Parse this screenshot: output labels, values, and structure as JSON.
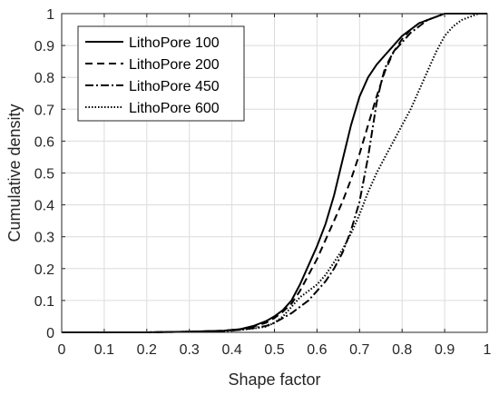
{
  "chart_data": {
    "type": "line",
    "title": "",
    "xlabel": "Shape factor",
    "ylabel": "Cumulative density",
    "xlim": [
      0,
      1
    ],
    "ylim": [
      0,
      1
    ],
    "x_ticks": [
      "0",
      "0.1",
      "0.2",
      "0.3",
      "0.4",
      "0.5",
      "0.6",
      "0.7",
      "0.8",
      "0.9",
      "1"
    ],
    "y_ticks": [
      "0",
      "0.1",
      "0.2",
      "0.3",
      "0.4",
      "0.5",
      "0.6",
      "0.7",
      "0.8",
      "0.9",
      "1"
    ],
    "grid": true,
    "legend_position": "top-left",
    "series": [
      {
        "name": "LithoPore 100",
        "line_style": "solid",
        "x": [
          0.0,
          0.1,
          0.2,
          0.3,
          0.38,
          0.42,
          0.45,
          0.48,
          0.5,
          0.52,
          0.54,
          0.56,
          0.58,
          0.6,
          0.62,
          0.64,
          0.66,
          0.68,
          0.7,
          0.72,
          0.74,
          0.76,
          0.78,
          0.8,
          0.82,
          0.84,
          0.86,
          0.88,
          0.9,
          0.95,
          1.0
        ],
        "y": [
          0.0,
          0.0,
          0.0,
          0.002,
          0.005,
          0.01,
          0.02,
          0.035,
          0.05,
          0.07,
          0.1,
          0.15,
          0.21,
          0.27,
          0.34,
          0.43,
          0.54,
          0.65,
          0.74,
          0.8,
          0.84,
          0.87,
          0.9,
          0.93,
          0.95,
          0.97,
          0.98,
          0.99,
          1.0,
          1.0,
          1.0
        ]
      },
      {
        "name": "LithoPore 200",
        "line_style": "dashed",
        "x": [
          0.0,
          0.1,
          0.2,
          0.3,
          0.38,
          0.42,
          0.45,
          0.48,
          0.5,
          0.52,
          0.54,
          0.56,
          0.58,
          0.6,
          0.62,
          0.64,
          0.66,
          0.68,
          0.7,
          0.72,
          0.74,
          0.76,
          0.78,
          0.8,
          0.82,
          0.84,
          0.86,
          0.88,
          0.9,
          0.95,
          1.0
        ],
        "y": [
          0.0,
          0.0,
          0.0,
          0.002,
          0.005,
          0.01,
          0.018,
          0.03,
          0.045,
          0.065,
          0.09,
          0.13,
          0.18,
          0.23,
          0.29,
          0.35,
          0.41,
          0.48,
          0.56,
          0.65,
          0.74,
          0.82,
          0.88,
          0.92,
          0.95,
          0.97,
          0.98,
          0.99,
          1.0,
          1.0,
          1.0
        ]
      },
      {
        "name": "LithoPore 450",
        "line_style": "dash-dot",
        "x": [
          0.0,
          0.1,
          0.2,
          0.3,
          0.38,
          0.42,
          0.45,
          0.48,
          0.5,
          0.52,
          0.54,
          0.56,
          0.58,
          0.6,
          0.62,
          0.64,
          0.66,
          0.68,
          0.7,
          0.72,
          0.74,
          0.75,
          0.76,
          0.78,
          0.8,
          0.82,
          0.84,
          0.86,
          0.88,
          0.9,
          0.95,
          1.0
        ],
        "y": [
          0.0,
          0.0,
          0.0,
          0.002,
          0.004,
          0.008,
          0.013,
          0.02,
          0.03,
          0.045,
          0.06,
          0.08,
          0.1,
          0.13,
          0.16,
          0.2,
          0.25,
          0.32,
          0.41,
          0.55,
          0.72,
          0.78,
          0.83,
          0.88,
          0.91,
          0.94,
          0.96,
          0.98,
          0.99,
          1.0,
          1.0,
          1.0
        ]
      },
      {
        "name": "LithoPore 600",
        "line_style": "dotted",
        "x": [
          0.0,
          0.1,
          0.2,
          0.3,
          0.38,
          0.42,
          0.45,
          0.48,
          0.5,
          0.52,
          0.54,
          0.56,
          0.58,
          0.6,
          0.62,
          0.64,
          0.66,
          0.68,
          0.7,
          0.72,
          0.74,
          0.76,
          0.78,
          0.8,
          0.82,
          0.84,
          0.86,
          0.88,
          0.9,
          0.92,
          0.94,
          0.96,
          0.98,
          1.0
        ],
        "y": [
          0.0,
          0.0,
          0.0,
          0.002,
          0.004,
          0.008,
          0.012,
          0.018,
          0.03,
          0.05,
          0.08,
          0.11,
          0.13,
          0.15,
          0.18,
          0.22,
          0.26,
          0.31,
          0.37,
          0.44,
          0.5,
          0.55,
          0.6,
          0.65,
          0.7,
          0.76,
          0.82,
          0.88,
          0.93,
          0.96,
          0.98,
          0.99,
          1.0,
          1.0
        ]
      }
    ]
  }
}
